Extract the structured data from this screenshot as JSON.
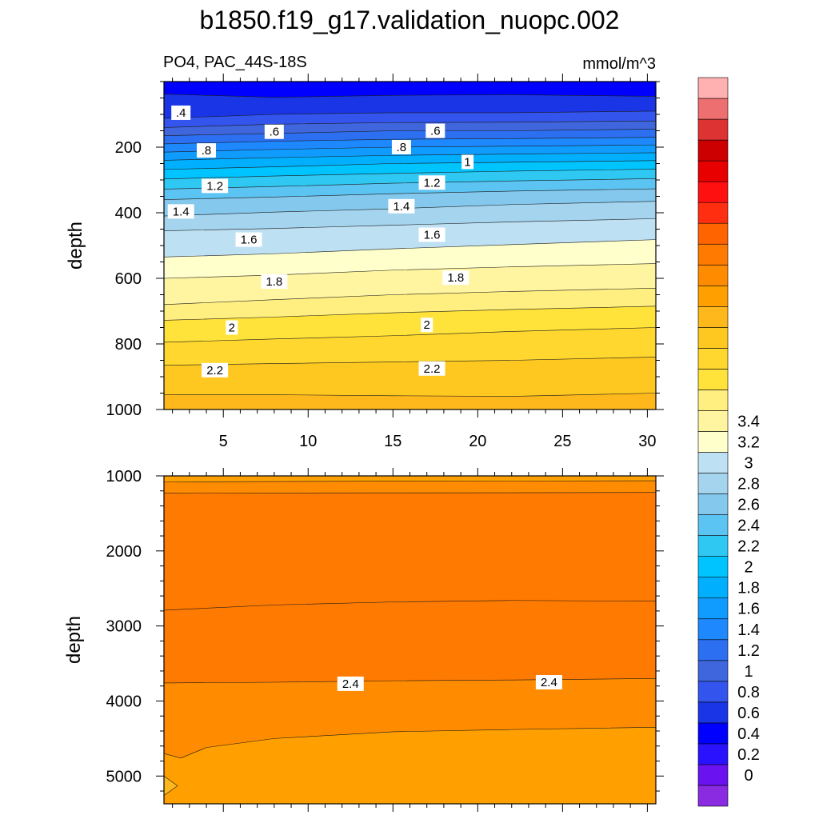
{
  "title": "b1850.f19_g17.validation_nuopc.002",
  "subtitle_left": "PO4, PAC_44S-18S",
  "subtitle_right": "mmol/m^3",
  "colors": {
    "levels": [
      "#8a2be2",
      "#6a13f0",
      "#2b12ff",
      "#0000ff",
      "#1a35e6",
      "#3355ee",
      "#4066dd",
      "#2c6ff0",
      "#1e88ff",
      "#109cff",
      "#00b0ff",
      "#00c4ff",
      "#2ec8f2",
      "#5cc4f2",
      "#84c8ee",
      "#a4d4ee",
      "#bde0f2",
      "#ffffcc",
      "#fff5a0",
      "#ffee80",
      "#ffe33a",
      "#ffd72e",
      "#ffc820",
      "#ffb81c",
      "#ffa000",
      "#ff8c00",
      "#ff7a00",
      "#ff6400",
      "#ff2e10",
      "#ff1010",
      "#e80000",
      "#cc0000",
      "#dd3333",
      "#ee6f6f",
      "#ffb0b0"
    ]
  },
  "chart_data": [
    {
      "type": "heatmap",
      "panel": "upper",
      "xlabel": "",
      "ylabel": "depth",
      "xlim": [
        1.5,
        30.5
      ],
      "ylim": [
        1000,
        0
      ],
      "xticks": [
        5,
        10,
        15,
        20,
        25,
        30
      ],
      "yticks": [
        200,
        400,
        600,
        800,
        1000
      ],
      "contours": [
        {
          "value": 0.3,
          "x": [
            1.5,
            8,
            15,
            22,
            30.5
          ],
          "y": [
            38,
            48,
            42,
            40,
            45
          ]
        },
        {
          "value": 0.4,
          "x": [
            1.5,
            8,
            15,
            22,
            30.5
          ],
          "y": [
            112,
            100,
            95,
            95,
            90
          ]
        },
        {
          "value": 0.5,
          "x": [
            1.5,
            8,
            15,
            22,
            30.5
          ],
          "y": [
            140,
            130,
            125,
            124,
            120
          ]
        },
        {
          "value": 0.6,
          "x": [
            1.5,
            8,
            15,
            22,
            30.5
          ],
          "y": [
            165,
            158,
            150,
            150,
            145
          ]
        },
        {
          "value": 0.7,
          "x": [
            1.5,
            8,
            15,
            22,
            30.5
          ],
          "y": [
            190,
            182,
            176,
            174,
            170
          ]
        },
        {
          "value": 0.8,
          "x": [
            1.5,
            8,
            15,
            22,
            30.5
          ],
          "y": [
            215,
            207,
            200,
            197,
            193
          ]
        },
        {
          "value": 0.9,
          "x": [
            1.5,
            8,
            15,
            22,
            30.5
          ],
          "y": [
            240,
            232,
            225,
            221,
            217
          ]
        },
        {
          "value": 1.0,
          "x": [
            1.5,
            8,
            15,
            22,
            30.5
          ],
          "y": [
            268,
            260,
            250,
            246,
            241
          ]
        },
        {
          "value": 1.1,
          "x": [
            1.5,
            8,
            15,
            22,
            30.5
          ],
          "y": [
            297,
            288,
            280,
            273,
            267
          ]
        },
        {
          "value": 1.2,
          "x": [
            1.5,
            8,
            15,
            22,
            30.5
          ],
          "y": [
            328,
            320,
            310,
            303,
            296
          ]
        },
        {
          "value": 1.3,
          "x": [
            1.5,
            8,
            15,
            22,
            30.5
          ],
          "y": [
            360,
            352,
            342,
            334,
            327
          ]
        },
        {
          "value": 1.4,
          "x": [
            1.5,
            8,
            15,
            22,
            30.5
          ],
          "y": [
            410,
            398,
            388,
            375,
            365
          ]
        },
        {
          "value": 1.5,
          "x": [
            1.5,
            8,
            15,
            22,
            30.5
          ],
          "y": [
            455,
            448,
            438,
            428,
            418
          ]
        },
        {
          "value": 1.6,
          "x": [
            1.5,
            8,
            15,
            22,
            30.5
          ],
          "y": [
            535,
            525,
            510,
            497,
            482
          ]
        },
        {
          "value": 1.7,
          "x": [
            1.5,
            8,
            15,
            22,
            30.5
          ],
          "y": [
            600,
            590,
            575,
            565,
            555
          ]
        },
        {
          "value": 1.8,
          "x": [
            1.5,
            8,
            15,
            22,
            30.5
          ],
          "y": [
            680,
            665,
            650,
            640,
            630
          ]
        },
        {
          "value": 1.9,
          "x": [
            1.5,
            8,
            15,
            22,
            30.5
          ],
          "y": [
            728,
            718,
            705,
            695,
            685
          ]
        },
        {
          "value": 2.0,
          "x": [
            1.5,
            8,
            15,
            22,
            30.5
          ],
          "y": [
            795,
            785,
            775,
            762,
            750
          ]
        },
        {
          "value": 2.1,
          "x": [
            1.5,
            8,
            15,
            22,
            30.5
          ],
          "y": [
            865,
            860,
            855,
            850,
            840
          ]
        },
        {
          "value": 2.2,
          "x": [
            1.5,
            8,
            15,
            22,
            30.5
          ],
          "y": [
            955,
            955,
            958,
            960,
            950
          ]
        }
      ],
      "labels": [
        {
          "text": ".4",
          "x": 2.5,
          "y": 95
        },
        {
          "text": ".6",
          "x": 8,
          "y": 153
        },
        {
          "text": ".6",
          "x": 17.5,
          "y": 150
        },
        {
          "text": ".8",
          "x": 4,
          "y": 210
        },
        {
          "text": ".8",
          "x": 15.5,
          "y": 200
        },
        {
          "text": "1",
          "x": 19.4,
          "y": 245
        },
        {
          "text": "1.2",
          "x": 4.5,
          "y": 318
        },
        {
          "text": "1.2",
          "x": 17.3,
          "y": 308
        },
        {
          "text": "1.4",
          "x": 2.5,
          "y": 396
        },
        {
          "text": "1.4",
          "x": 15.5,
          "y": 380
        },
        {
          "text": "1.6",
          "x": 6.5,
          "y": 482
        },
        {
          "text": "1.6",
          "x": 17.3,
          "y": 467
        },
        {
          "text": "1.8",
          "x": 8,
          "y": 610
        },
        {
          "text": "1.8",
          "x": 18.7,
          "y": 598
        },
        {
          "text": "2",
          "x": 5.5,
          "y": 750
        },
        {
          "text": "2",
          "x": 17,
          "y": 742
        },
        {
          "text": "2.2",
          "x": 4.5,
          "y": 880
        },
        {
          "text": "2.2",
          "x": 17.3,
          "y": 875
        }
      ]
    },
    {
      "type": "heatmap",
      "panel": "lower",
      "xlabel": "",
      "ylabel": "depth",
      "xlim": [
        1.5,
        30.5
      ],
      "ylim": [
        5370,
        1000
      ],
      "xticks": [
        5,
        10,
        15,
        20,
        25,
        30
      ],
      "yticks": [
        1000,
        2000,
        3000,
        4000,
        5000
      ],
      "contours": [
        {
          "value": 2.4,
          "x": [
            1.5,
            8,
            15,
            22,
            30.5
          ],
          "y": [
            1080,
            1075,
            1070,
            1068,
            1065
          ]
        },
        {
          "value": 2.5,
          "x": [
            1.5,
            8,
            15,
            22,
            30.5
          ],
          "y": [
            1230,
            1228,
            1226,
            1225,
            1220
          ]
        },
        {
          "value": 2.6,
          "x": [
            1.5,
            8,
            15,
            22,
            30.5
          ],
          "y": [
            2790,
            2720,
            2680,
            2660,
            2670
          ]
        },
        {
          "value": 2.5,
          "x": [
            1.5,
            8,
            15,
            22,
            30.5
          ],
          "y": [
            3760,
            3750,
            3730,
            3720,
            3700
          ]
        },
        {
          "value": 2.4,
          "x": [
            1.5,
            2.5,
            4,
            8,
            15,
            22,
            30.5
          ],
          "y": [
            4700,
            4760,
            4620,
            4500,
            4410,
            4380,
            4350
          ]
        },
        {
          "value": 2.3,
          "x": [
            1.5,
            2.3,
            1.5
          ],
          "y": [
            5000,
            5130,
            5260
          ]
        }
      ],
      "labels": [
        {
          "text": "2.4",
          "x": 12.5,
          "y": 3770
        },
        {
          "text": "2.4",
          "x": 24.2,
          "y": 3750
        }
      ]
    }
  ],
  "colorbar": {
    "labels": [
      "0",
      "0.2",
      "0.4",
      "0.6",
      "0.8",
      "1",
      "1.2",
      "1.4",
      "1.6",
      "1.8",
      "2",
      "2.2",
      "2.4",
      "2.6",
      "2.8",
      "3",
      "3.2",
      "3.4"
    ]
  }
}
